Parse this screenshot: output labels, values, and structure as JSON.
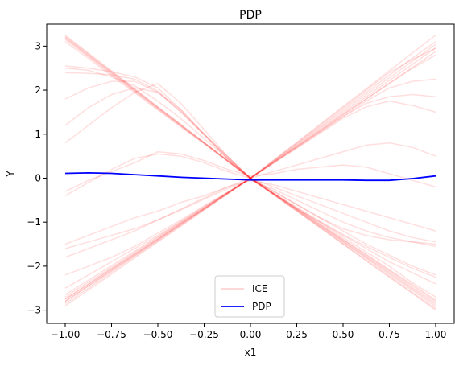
{
  "chart_data": {
    "type": "line",
    "title": "PDP",
    "xlabel": "x1",
    "ylabel": "Y",
    "xlim": [
      -1.1,
      1.1
    ],
    "ylim": [
      -3.3,
      3.5
    ],
    "xticks": [
      -1.0,
      -0.75,
      -0.5,
      -0.25,
      0.0,
      0.25,
      0.5,
      0.75,
      1.0
    ],
    "xtick_labels": [
      "−1.00",
      "−0.75",
      "−0.50",
      "−0.25",
      "0.00",
      "0.25",
      "0.50",
      "0.75",
      "1.00"
    ],
    "yticks": [
      -3,
      -2,
      -1,
      0,
      1,
      2,
      3
    ],
    "ytick_labels": [
      "−3",
      "−2",
      "−1",
      "0",
      "1",
      "2",
      "3"
    ],
    "legend_position": "bottom-center",
    "x": [
      -1.0,
      -0.875,
      -0.75,
      -0.625,
      -0.5,
      -0.375,
      -0.25,
      -0.125,
      0.0,
      0.125,
      0.25,
      0.375,
      0.5,
      0.625,
      0.75,
      0.875,
      1.0
    ],
    "series": [
      {
        "name": "ICE",
        "color": "#ff0000",
        "opacity": 0.13,
        "note": "many individual conditional expectation curves",
        "lines": [
          [
            3.25,
            2.84,
            2.44,
            2.03,
            1.62,
            1.22,
            0.81,
            0.41,
            0.0,
            -0.35,
            -0.7,
            -1.05,
            -1.4,
            -1.75,
            -2.1,
            -2.45,
            -2.8
          ],
          [
            3.2,
            2.8,
            2.4,
            2.0,
            1.6,
            1.2,
            0.8,
            0.4,
            0.0,
            -0.36,
            -0.72,
            -1.08,
            -1.44,
            -1.8,
            -2.16,
            -2.52,
            -2.88
          ],
          [
            3.15,
            2.76,
            2.36,
            1.97,
            1.57,
            1.18,
            0.79,
            0.39,
            -0.02,
            -0.37,
            -0.73,
            -1.1,
            -1.46,
            -1.82,
            -2.19,
            -2.55,
            -2.92
          ],
          [
            3.1,
            2.72,
            2.33,
            1.94,
            1.55,
            1.16,
            0.78,
            0.39,
            0.0,
            -0.35,
            -0.69,
            -1.04,
            -1.39,
            -1.73,
            -2.08,
            -2.42,
            -2.77
          ],
          [
            3.22,
            2.82,
            2.42,
            2.02,
            1.61,
            1.21,
            0.81,
            0.4,
            0.01,
            -0.36,
            -0.71,
            -1.07,
            -1.42,
            -1.78,
            -2.13,
            -2.49,
            -2.84
          ],
          [
            3.18,
            2.78,
            2.39,
            1.99,
            1.59,
            1.19,
            0.8,
            0.4,
            -0.01,
            -0.37,
            -0.74,
            -1.12,
            -1.49,
            -1.86,
            -2.23,
            -2.6,
            -2.97
          ],
          [
            2.55,
            2.5,
            2.42,
            2.3,
            2.05,
            1.55,
            1.0,
            0.45,
            0.0,
            -0.38,
            -0.75,
            -1.12,
            -1.5,
            -1.88,
            -2.25,
            -2.62,
            -3.0
          ],
          [
            2.4,
            2.38,
            2.35,
            2.25,
            1.98,
            1.5,
            0.98,
            0.45,
            0.0,
            -0.35,
            -0.68,
            -1.0,
            -1.35,
            -1.68,
            -2.0,
            -2.38,
            -2.7
          ],
          [
            2.5,
            2.45,
            2.3,
            2.1,
            1.75,
            1.35,
            0.9,
            0.45,
            0.0,
            -0.34,
            -0.66,
            -0.98,
            -1.28,
            -1.55,
            -1.8,
            -2.05,
            -2.25
          ],
          [
            1.8,
            2.05,
            2.2,
            2.2,
            1.95,
            1.5,
            1.0,
            0.5,
            0.0,
            -0.3,
            -0.6,
            -0.9,
            -1.15,
            -1.3,
            -1.4,
            -1.45,
            -1.5
          ],
          [
            1.2,
            1.6,
            1.9,
            2.05,
            1.95,
            1.55,
            1.0,
            0.48,
            0.0,
            -0.3,
            -0.6,
            -0.9,
            -1.2,
            -1.5,
            -1.75,
            -2.0,
            -2.2
          ],
          [
            0.8,
            1.2,
            1.6,
            1.95,
            2.15,
            1.7,
            1.1,
            0.5,
            0.0,
            -0.35,
            -0.7,
            -1.0,
            -1.3,
            -1.6,
            -1.9,
            -2.15,
            -2.4
          ],
          [
            -0.4,
            -0.1,
            0.2,
            0.45,
            0.55,
            0.5,
            0.35,
            0.15,
            0.0,
            0.15,
            0.3,
            0.45,
            0.6,
            0.75,
            0.8,
            0.7,
            0.5
          ],
          [
            -0.3,
            -0.05,
            0.15,
            0.35,
            0.6,
            0.55,
            0.4,
            0.2,
            0.05,
            0.1,
            0.2,
            0.25,
            0.3,
            0.25,
            0.1,
            -0.05,
            -0.2
          ],
          [
            -2.8,
            -2.45,
            -2.1,
            -1.75,
            -1.4,
            -1.05,
            -0.7,
            -0.35,
            0.0,
            0.4,
            0.8,
            1.2,
            1.6,
            2.0,
            2.4,
            2.7,
            2.95
          ],
          [
            -2.85,
            -2.5,
            -2.14,
            -1.78,
            -1.43,
            -1.07,
            -0.71,
            -0.36,
            0.0,
            0.41,
            0.81,
            1.22,
            1.63,
            2.03,
            2.44,
            2.85,
            3.25
          ],
          [
            -2.75,
            -2.41,
            -2.06,
            -1.72,
            -1.38,
            -1.03,
            -0.69,
            -0.34,
            0.0,
            0.39,
            0.78,
            1.17,
            1.56,
            1.95,
            2.34,
            2.73,
            3.1
          ],
          [
            -2.9,
            -2.54,
            -2.18,
            -1.81,
            -1.45,
            -1.09,
            -0.73,
            -0.36,
            0.0,
            0.38,
            0.76,
            1.14,
            1.52,
            1.9,
            2.28,
            2.66,
            3.04
          ],
          [
            -2.7,
            -2.36,
            -2.03,
            -1.69,
            -1.35,
            -1.01,
            -0.68,
            -0.34,
            0.0,
            0.37,
            0.74,
            1.11,
            1.48,
            1.85,
            2.22,
            2.59,
            2.96
          ],
          [
            -2.65,
            -2.32,
            -1.99,
            -1.66,
            -1.33,
            -0.99,
            -0.66,
            -0.33,
            0.0,
            0.36,
            0.72,
            1.08,
            1.44,
            1.8,
            2.16,
            2.52,
            2.88
          ],
          [
            -2.8,
            -2.45,
            -2.1,
            -1.75,
            -1.4,
            -1.05,
            -0.7,
            -0.35,
            0.0,
            0.35,
            0.7,
            1.05,
            1.4,
            1.7,
            1.85,
            1.9,
            1.85
          ],
          [
            -2.75,
            -2.41,
            -2.06,
            -1.72,
            -1.38,
            -1.03,
            -0.69,
            -0.34,
            0.0,
            0.34,
            0.68,
            1.02,
            1.36,
            1.62,
            1.75,
            1.65,
            1.5
          ],
          [
            -2.5,
            -2.2,
            -1.9,
            -1.6,
            -1.3,
            -0.98,
            -0.65,
            -0.33,
            0.0,
            0.35,
            0.7,
            1.05,
            1.4,
            1.75,
            2.05,
            2.2,
            2.25
          ],
          [
            -2.2,
            -2.0,
            -1.8,
            -1.55,
            -1.25,
            -0.95,
            -0.63,
            -0.32,
            0.0,
            0.36,
            0.72,
            1.08,
            1.45,
            1.8,
            2.15,
            2.5,
            2.8
          ],
          [
            -1.8,
            -1.6,
            -1.4,
            -1.2,
            -0.95,
            -0.72,
            -0.48,
            -0.24,
            -0.05,
            -0.15,
            -0.3,
            -0.45,
            -0.6,
            -0.75,
            -0.9,
            -1.05,
            -1.2
          ],
          [
            -1.6,
            -1.45,
            -1.3,
            -1.15,
            -0.95,
            -0.7,
            -0.45,
            -0.2,
            0.0,
            -0.2,
            -0.4,
            -0.6,
            -0.8,
            -1.0,
            -1.2,
            -1.35,
            -1.45
          ],
          [
            -1.5,
            -1.3,
            -1.1,
            -0.9,
            -0.75,
            -0.55,
            -0.4,
            -0.2,
            -0.05,
            -0.25,
            -0.5,
            -0.75,
            -1.0,
            -1.2,
            -1.35,
            -1.45,
            -1.55
          ]
        ]
      },
      {
        "name": "PDP",
        "color": "#0000ff",
        "values": [
          0.11,
          0.12,
          0.11,
          0.08,
          0.05,
          0.02,
          0.0,
          -0.02,
          -0.04,
          -0.04,
          -0.04,
          -0.04,
          -0.04,
          -0.05,
          -0.05,
          -0.01,
          0.05
        ]
      }
    ]
  }
}
